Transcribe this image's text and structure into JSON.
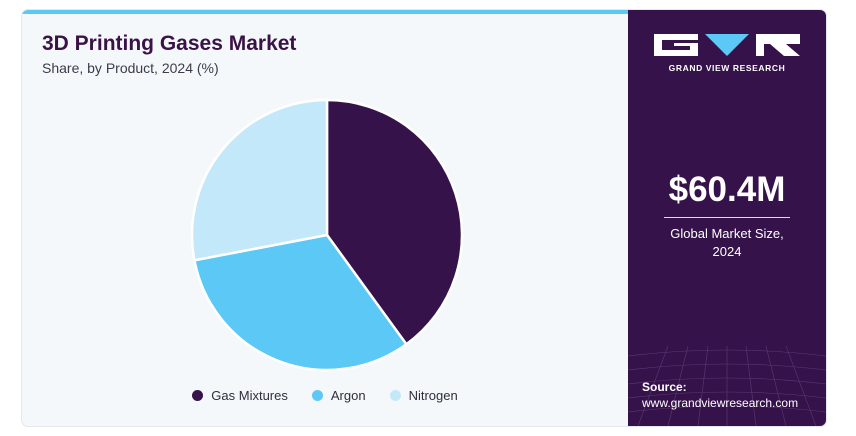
{
  "title": "3D Printing Gases Market",
  "subtitle": "Share, by Product, 2024 (%)",
  "colors": {
    "accent_bar": "#5bc8f5",
    "panel": "#36124a",
    "title": "#3a1346"
  },
  "chart_data": {
    "type": "pie",
    "title": "3D Printing Gases Market",
    "subtitle": "Share, by Product, 2024 (%)",
    "categories": [
      "Gas Mixtures",
      "Argon",
      "Nitrogen"
    ],
    "values": [
      40,
      32,
      28
    ],
    "colors": [
      "#36124a",
      "#5bc8f5",
      "#c3e8fa"
    ],
    "legend": "bottom"
  },
  "brand": {
    "name": "GRAND VIEW RESEARCH",
    "icons": [
      "gvr-g-mark",
      "gvr-v-mark",
      "gvr-r-mark"
    ]
  },
  "market": {
    "value": "$60.4M",
    "label_line1": "Global Market Size,",
    "label_line2": "2024"
  },
  "source": {
    "label": "Source:",
    "url": "www.grandviewresearch.com"
  }
}
